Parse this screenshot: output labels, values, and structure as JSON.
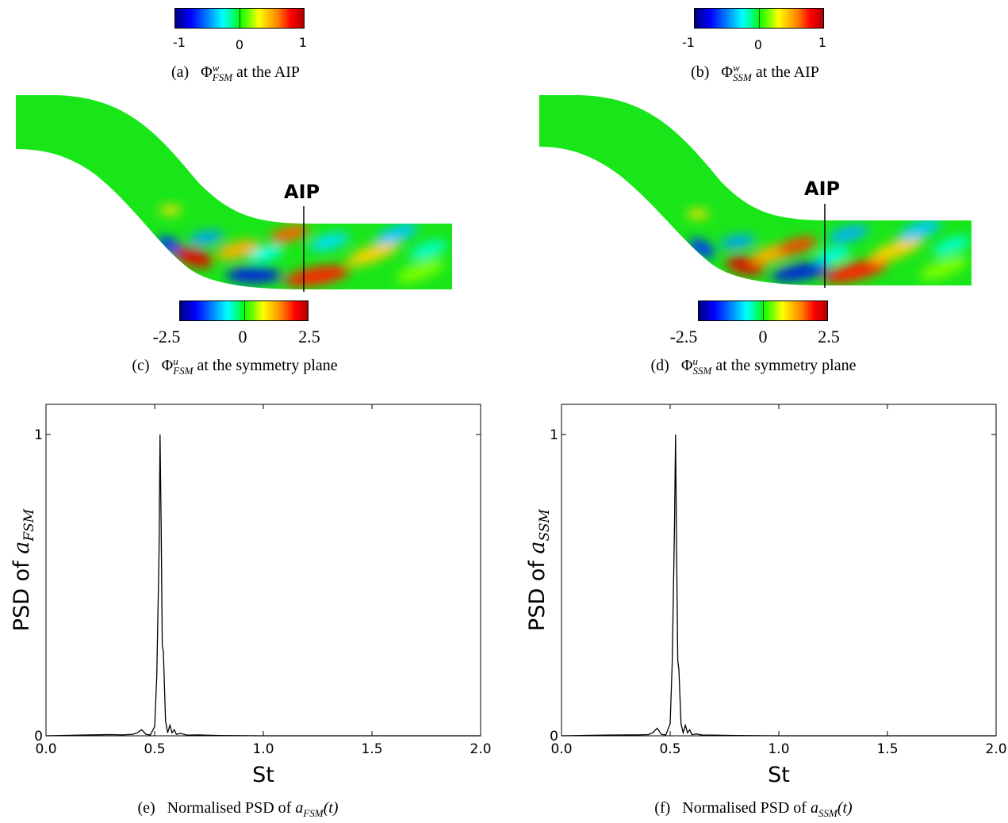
{
  "panels": {
    "a": {
      "colorbar_ticks": [
        "-1",
        "0",
        "1"
      ],
      "caption": {
        "label": "(a)",
        "symbol": "Φ",
        "sup": "w",
        "sub": "FSM",
        "text": "at the AIP"
      }
    },
    "b": {
      "colorbar_ticks": [
        "-1",
        "0",
        "1"
      ],
      "caption": {
        "label": "(b)",
        "symbol": "Φ",
        "sup": "w",
        "sub": "SSM",
        "text": "at the AIP"
      }
    },
    "c": {
      "aip_label": "AIP",
      "colorbar_ticks": [
        "-2.5",
        "0",
        "2.5"
      ],
      "caption": {
        "label": "(c)",
        "symbol": "Φ",
        "sup": "u",
        "sub": "FSM",
        "text": "at the symmetry plane"
      }
    },
    "d": {
      "aip_label": "AIP",
      "colorbar_ticks": [
        "-2.5",
        "0",
        "2.5"
      ],
      "caption": {
        "label": "(d)",
        "symbol": "Φ",
        "sup": "u",
        "sub": "SSM",
        "text": "at the symmetry plane"
      }
    },
    "e": {
      "caption": {
        "label": "(e)",
        "text": "Normalised PSD of",
        "var": "a",
        "sub": "FSM",
        "arg": "(t)"
      }
    },
    "f": {
      "caption": {
        "label": "(f)",
        "text": "Normalised PSD of",
        "var": "a",
        "sub": "SSM",
        "arg": "(t)"
      }
    }
  },
  "colormap": {
    "low": "#0000ff",
    "mid": "#00ff00",
    "high": "#ff0000"
  },
  "chart_data": [
    {
      "type": "line",
      "xlabel": "St",
      "ylabel_prefix": "PSD of ",
      "ylabel_var": "a",
      "ylabel_sub": "FSM",
      "xlim": [
        0.0,
        2.0
      ],
      "ylim": [
        0,
        1.1
      ],
      "x_ticks": [
        "0.0",
        "0.5",
        "1.0",
        "1.5",
        "2.0"
      ],
      "y_ticks": [
        "0",
        "1"
      ],
      "x": [
        0.0,
        0.2,
        0.3,
        0.35,
        0.4,
        0.42,
        0.44,
        0.46,
        0.48,
        0.5,
        0.51,
        0.52,
        0.525,
        0.53,
        0.535,
        0.54,
        0.55,
        0.56,
        0.57,
        0.58,
        0.59,
        0.6,
        0.62,
        0.65,
        0.7,
        0.8,
        1.0,
        2.0
      ],
      "y": [
        0.0,
        0.003,
        0.004,
        0.003,
        0.005,
        0.01,
        0.02,
        0.005,
        0.003,
        0.03,
        0.2,
        0.6,
        1.0,
        0.7,
        0.3,
        0.28,
        0.05,
        0.01,
        0.035,
        0.01,
        0.02,
        0.005,
        0.008,
        0.002,
        0.003,
        0.001,
        0.0,
        0.0
      ]
    },
    {
      "type": "line",
      "xlabel": "St",
      "ylabel_prefix": "PSD of ",
      "ylabel_var": "a",
      "ylabel_sub": "SSM",
      "xlim": [
        0.0,
        2.0
      ],
      "ylim": [
        0,
        1.1
      ],
      "x_ticks": [
        "0.0",
        "0.5",
        "1.0",
        "1.5",
        "2.0"
      ],
      "y_ticks": [
        "0",
        "1"
      ],
      "x": [
        0.0,
        0.2,
        0.3,
        0.35,
        0.4,
        0.42,
        0.44,
        0.46,
        0.48,
        0.5,
        0.51,
        0.52,
        0.525,
        0.53,
        0.535,
        0.54,
        0.55,
        0.56,
        0.57,
        0.58,
        0.59,
        0.6,
        0.62,
        0.65,
        0.7,
        0.8,
        1.0,
        2.0
      ],
      "y": [
        0.0,
        0.002,
        0.003,
        0.003,
        0.004,
        0.01,
        0.025,
        0.005,
        0.003,
        0.04,
        0.25,
        0.7,
        1.0,
        0.6,
        0.25,
        0.22,
        0.04,
        0.01,
        0.035,
        0.01,
        0.02,
        0.004,
        0.006,
        0.002,
        0.002,
        0.001,
        0.0,
        0.0
      ]
    }
  ]
}
